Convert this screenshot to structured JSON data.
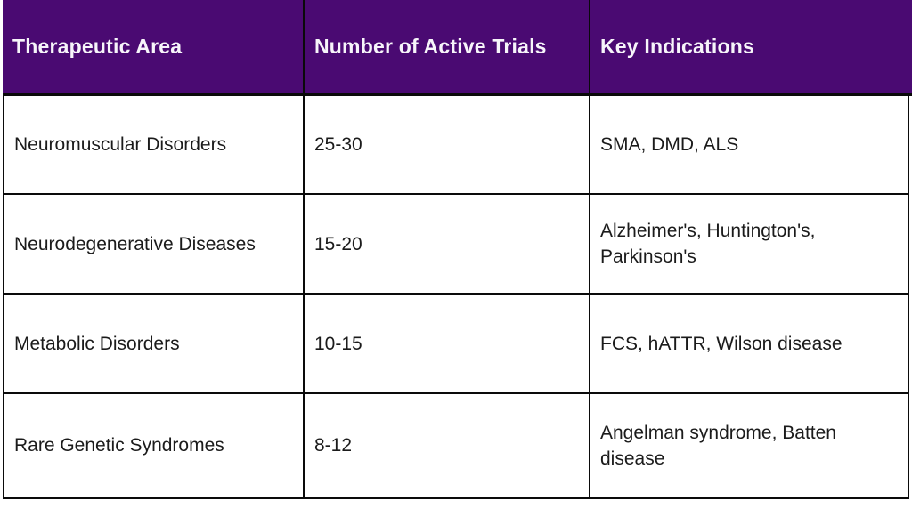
{
  "chart_data": {
    "type": "table",
    "columns": [
      "Therapeutic Area",
      "Number of Active Trials",
      "Key Indications"
    ],
    "rows": [
      [
        "Neuromuscular Disorders",
        "25-30",
        "SMA, DMD, ALS"
      ],
      [
        "Neurodegenerative Diseases",
        "15-20",
        "Alzheimer's, Huntington's, Parkinson's"
      ],
      [
        "Metabolic Disorders",
        "10-15",
        "FCS, hATTR, Wilson disease"
      ],
      [
        "Rare Genetic Syndromes",
        "8-12",
        "Angelman syndrome, Batten disease"
      ]
    ]
  },
  "style": {
    "header_bg": "#4a0a72",
    "header_text": "#f7f5fa",
    "border_color": "#0a0a0a",
    "body_text": "#1b1b1b",
    "body_bg": "#ffffff"
  }
}
